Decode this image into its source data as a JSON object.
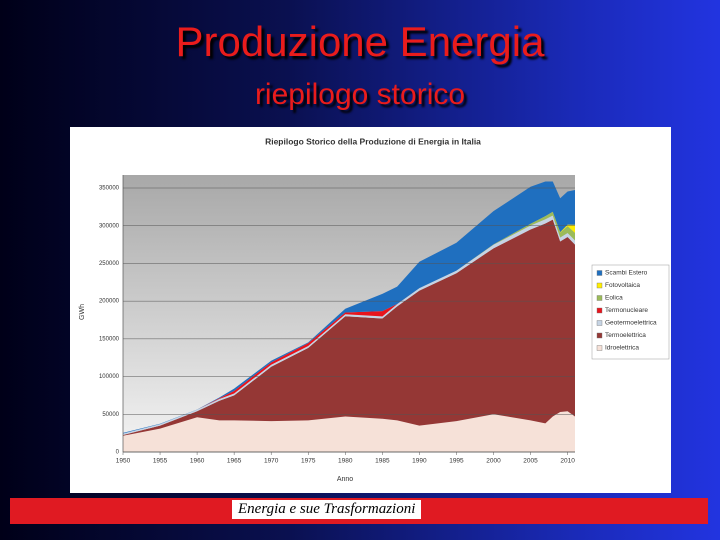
{
  "slide": {
    "title": "Produzione Energia",
    "subtitle": "riepilogo storico",
    "footer": "Energia e sue Trasformazioni"
  },
  "chart_data": {
    "type": "stacked-area",
    "title": "Riepilogo Storico della Produzione di Energia in Italia",
    "x_label": "Anno",
    "y_label": "GWh",
    "x": [
      1950,
      1955,
      1960,
      1963,
      1965,
      1970,
      1975,
      1980,
      1985,
      1987,
      1990,
      1995,
      2000,
      2005,
      2007,
      2008,
      2009,
      2010,
      2011
    ],
    "series": [
      {
        "name": "Idroelettrica",
        "color": "#f6e1d8",
        "values": [
          21600,
          31000,
          46000,
          42000,
          42000,
          41000,
          42000,
          47000,
          44000,
          42000,
          35000,
          41000,
          50000,
          42000,
          38000,
          47000,
          53000,
          54000,
          47000
        ]
      },
      {
        "name": "Termoelettrica",
        "color": "#953735",
        "values": [
          1000,
          4000,
          8000,
          26000,
          33000,
          72000,
          96000,
          133000,
          133000,
          151000,
          179000,
          196000,
          220000,
          253000,
          265000,
          261000,
          226000,
          231000,
          228000
        ]
      },
      {
        "name": "Geotermoelettrica",
        "color": "#c6d4e4",
        "values": [
          1900,
          2000,
          2100,
          2300,
          2600,
          2700,
          2500,
          2700,
          2700,
          3000,
          3200,
          3400,
          4700,
          5300,
          5600,
          5500,
          5300,
          5400,
          5600
        ]
      },
      {
        "name": "Termonucleare",
        "color": "#e8141c",
        "values": [
          0,
          0,
          0,
          1000,
          3500,
          3200,
          3800,
          2200,
          7000,
          200,
          0,
          0,
          0,
          0,
          0,
          0,
          0,
          0,
          0
        ]
      },
      {
        "name": "Eolica",
        "color": "#9bbb59",
        "values": [
          0,
          0,
          0,
          0,
          0,
          0,
          0,
          0,
          0,
          0,
          0,
          0,
          560,
          2300,
          4000,
          4900,
          6500,
          9100,
          9900
        ]
      },
      {
        "name": "Fotovoltaica",
        "color": "#ffee00",
        "values": [
          0,
          0,
          0,
          0,
          0,
          0,
          0,
          0,
          0,
          0,
          0,
          0,
          0,
          0,
          40,
          190,
          680,
          1900,
          10800
        ]
      },
      {
        "name": "Scambi Estero",
        "color": "#1f6fbf",
        "values": [
          800,
          500,
          200,
          1000,
          3000,
          2000,
          1000,
          5000,
          23000,
          23000,
          35000,
          37000,
          44000,
          49000,
          46000,
          40000,
          45000,
          44000,
          46000
        ]
      }
    ],
    "xlim": [
      1950,
      2011
    ],
    "xticks": [
      1950,
      1955,
      1960,
      1965,
      1970,
      1975,
      1980,
      1985,
      1990,
      1995,
      2000,
      2005,
      2010
    ],
    "ylim": [
      0,
      350000
    ],
    "yticks": [
      0,
      50000,
      100000,
      150000,
      200000,
      250000,
      300000,
      350000
    ],
    "grid": true
  }
}
